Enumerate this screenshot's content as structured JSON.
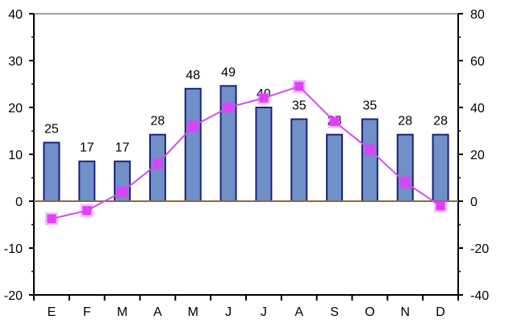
{
  "chart_data": {
    "type": "bar",
    "categories": [
      "E",
      "F",
      "M",
      "A",
      "M",
      "J",
      "J",
      "A",
      "S",
      "O",
      "N",
      "D"
    ],
    "bar_series": {
      "axis": "left",
      "values": [
        12.5,
        8.5,
        8.5,
        14.2,
        24,
        24.6,
        20,
        17.5,
        14.2,
        17.5,
        14.2,
        14.2
      ],
      "data_labels": [
        "25",
        "17",
        "17",
        "28",
        "48",
        "49",
        "40",
        "35",
        "28",
        "35",
        "28",
        "28"
      ]
    },
    "line_series": {
      "type": "line",
      "axis": "right",
      "values": [
        -7.5,
        -4,
        4,
        16,
        32,
        40,
        44,
        49,
        34,
        22,
        8,
        -2
      ]
    },
    "y_left": {
      "min": -20,
      "max": 40,
      "ticks": [
        "-20",
        "-10",
        "0",
        "10",
        "20",
        "30",
        "40"
      ]
    },
    "y_right": {
      "min": -40,
      "max": 80,
      "ticks": [
        "-40",
        "-20",
        "0",
        "20",
        "40",
        "60",
        "80"
      ]
    },
    "title": "",
    "xlabel": "",
    "ylabel": "",
    "grid": false,
    "legend": "none",
    "colors": {
      "bar_fill": "#7090c8",
      "bar_stroke": "#1a237e",
      "line": "#d050e8",
      "marker": "#e040fb",
      "zero_line": "#8b6b3a",
      "top_border": "#a0a0a0"
    }
  }
}
